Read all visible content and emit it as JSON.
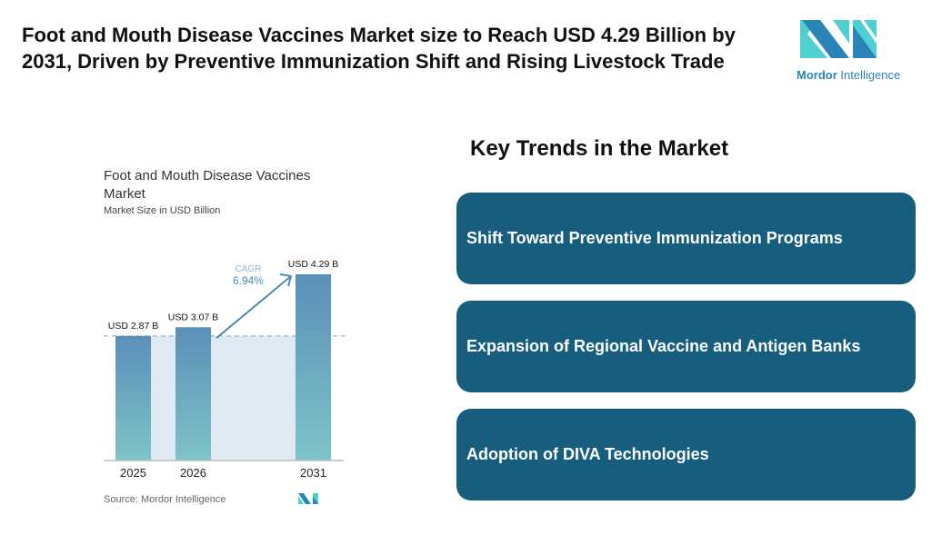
{
  "header": {
    "title": "Foot and Mouth Disease Vaccines Market size to Reach USD 4.29 Billion by 2031, Driven by Preventive Immunization Shift and Rising Livestock Trade"
  },
  "logo": {
    "brand_bold": "Mordor",
    "brand_rest": "Intelligence",
    "colors": [
      "#2a84b8",
      "#4ecfd0"
    ]
  },
  "chart_data": {
    "type": "bar",
    "title": "Foot and Mouth Disease Vaccines Market",
    "subtitle": "Market Size in USD Billion",
    "categories": [
      "2025",
      "2026",
      "2031"
    ],
    "values": [
      2.87,
      3.07,
      4.29
    ],
    "data_labels": [
      "USD 2.87 B",
      "USD 3.07 B",
      "USD 4.29 B"
    ],
    "annotation": {
      "label": "CAGR",
      "value": "6.94%"
    },
    "ylim": [
      0,
      4.5
    ],
    "grid": false,
    "source": "Source: Mordor Intelligence",
    "colors": {
      "bar_top": "#5b8fb8",
      "bar_bottom": "#7ec4c8",
      "shade": "#dfe9f1",
      "arrow": "#4a8ab5"
    }
  },
  "trends": {
    "heading": "Key Trends in the Market",
    "items": [
      "Shift Toward Preventive Immunization Programs",
      "Expansion of Regional Vaccine and Antigen Banks",
      "Adoption of DIVA Technologies"
    ],
    "color": "#175e7e"
  }
}
